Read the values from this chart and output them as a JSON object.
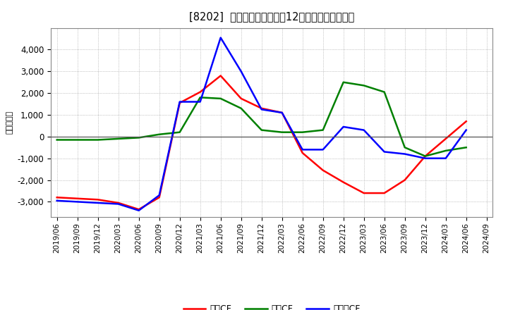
{
  "title": "[8202]  キャッシュフローの12か月移動合計の推移",
  "ylabel": "（百万円）",
  "x_labels": [
    "2019/06",
    "2019/09",
    "2019/12",
    "2020/03",
    "2020/06",
    "2020/09",
    "2020/12",
    "2021/03",
    "2021/06",
    "2021/09",
    "2021/12",
    "2022/03",
    "2022/06",
    "2022/09",
    "2022/12",
    "2023/03",
    "2023/06",
    "2023/09",
    "2023/12",
    "2024/03",
    "2024/06",
    "2024/09"
  ],
  "operating_cf": [
    -2800,
    -2850,
    -2900,
    -3050,
    -3350,
    -2800,
    1550,
    2050,
    2800,
    1750,
    1300,
    1100,
    -750,
    -1550,
    -2100,
    -2600,
    -2600,
    -2000,
    -900,
    -100,
    700,
    null
  ],
  "investing_cf": [
    -150,
    -150,
    -150,
    -100,
    -50,
    100,
    200,
    1800,
    1750,
    1300,
    300,
    200,
    200,
    300,
    2500,
    2350,
    2050,
    -500,
    -900,
    -650,
    -500,
    null
  ],
  "free_cf": [
    -2950,
    -3000,
    -3050,
    -3100,
    -3400,
    -2700,
    1600,
    1600,
    4550,
    3000,
    1250,
    1100,
    -600,
    -600,
    450,
    300,
    -700,
    -800,
    -1000,
    -1000,
    300,
    null
  ],
  "operating_color": "#ff0000",
  "investing_color": "#008000",
  "free_color": "#0000ff",
  "ylim": [
    -3700,
    5000
  ],
  "yticks": [
    -3000,
    -2000,
    -1000,
    0,
    1000,
    2000,
    3000,
    4000
  ],
  "background_color": "#ffffff",
  "grid_color": "#999999",
  "legend_labels": [
    "営業CF",
    "投資CF",
    "フリーCF"
  ]
}
